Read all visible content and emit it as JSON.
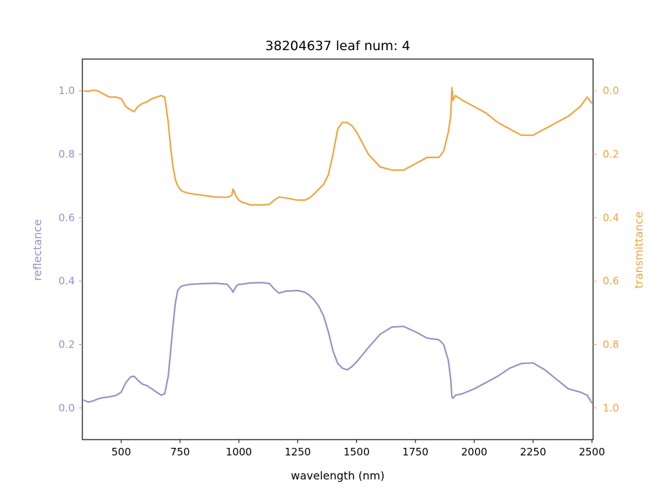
{
  "chart_data": {
    "type": "line",
    "title": "38204637 leaf num: 4",
    "xlabel": "wavelength (nm)",
    "ylabel_left": "reflectance",
    "ylabel_right": "transmittance",
    "xlim": [
      335,
      2505
    ],
    "ylim_left": [
      -0.1,
      1.1
    ],
    "ylim_right": [
      1.1,
      -0.1
    ],
    "right_axis_inverted": true,
    "grid": false,
    "legend": "none",
    "colors": {
      "reflectance": "#9591c6",
      "transmittance": "#f0a43c"
    },
    "x_ticks": [
      "500",
      "750",
      "1000",
      "1250",
      "1500",
      "1750",
      "2000",
      "2250",
      "2500"
    ],
    "x_tick_values": [
      500,
      750,
      1000,
      1250,
      1500,
      1750,
      2000,
      2250,
      2500
    ],
    "y_left_ticks": [
      "0.0",
      "0.2",
      "0.4",
      "0.6",
      "0.8",
      "1.0"
    ],
    "y_left_tick_values": [
      0.0,
      0.2,
      0.4,
      0.6,
      0.8,
      1.0
    ],
    "y_right_ticks": [
      "0.0",
      "0.2",
      "0.4",
      "0.6",
      "0.8",
      "1.0"
    ],
    "y_right_tick_values": [
      0.0,
      0.2,
      0.4,
      0.6,
      0.8,
      1.0
    ],
    "series": [
      {
        "key": "reflectance",
        "axis": "left",
        "x": [
          340,
          360,
          380,
          400,
          420,
          450,
          480,
          500,
          520,
          540,
          555,
          570,
          590,
          610,
          630,
          650,
          670,
          685,
          700,
          710,
          720,
          730,
          740,
          750,
          760,
          780,
          800,
          850,
          900,
          950,
          970,
          975,
          990,
          1000,
          1010,
          1050,
          1100,
          1130,
          1150,
          1170,
          1200,
          1250,
          1280,
          1300,
          1320,
          1340,
          1360,
          1380,
          1400,
          1420,
          1440,
          1460,
          1480,
          1500,
          1550,
          1600,
          1650,
          1700,
          1750,
          1800,
          1850,
          1870,
          1890,
          1900,
          1905,
          1910,
          1920,
          1950,
          2000,
          2050,
          2100,
          2150,
          2200,
          2250,
          2300,
          2350,
          2400,
          2450,
          2480,
          2500
        ],
        "y": [
          0.025,
          0.018,
          0.022,
          0.028,
          0.032,
          0.035,
          0.04,
          0.05,
          0.08,
          0.098,
          0.1,
          0.088,
          0.075,
          0.07,
          0.06,
          0.05,
          0.04,
          0.045,
          0.1,
          0.18,
          0.26,
          0.33,
          0.37,
          0.38,
          0.385,
          0.388,
          0.39,
          0.392,
          0.393,
          0.39,
          0.372,
          0.365,
          0.385,
          0.39,
          0.39,
          0.394,
          0.395,
          0.392,
          0.375,
          0.362,
          0.368,
          0.37,
          0.365,
          0.355,
          0.34,
          0.32,
          0.29,
          0.24,
          0.18,
          0.14,
          0.125,
          0.12,
          0.13,
          0.145,
          0.19,
          0.232,
          0.255,
          0.257,
          0.24,
          0.22,
          0.215,
          0.2,
          0.15,
          0.09,
          0.035,
          0.03,
          0.04,
          0.045,
          0.06,
          0.08,
          0.1,
          0.125,
          0.14,
          0.142,
          0.12,
          0.09,
          0.06,
          0.05,
          0.04,
          0.015
        ]
      },
      {
        "key": "transmittance",
        "axis": "right",
        "x": [
          340,
          360,
          380,
          400,
          420,
          450,
          480,
          500,
          520,
          540,
          555,
          570,
          590,
          610,
          630,
          650,
          670,
          685,
          700,
          710,
          720,
          730,
          740,
          750,
          760,
          780,
          800,
          850,
          900,
          950,
          970,
          975,
          990,
          1000,
          1010,
          1050,
          1100,
          1130,
          1150,
          1170,
          1200,
          1250,
          1280,
          1300,
          1320,
          1340,
          1360,
          1380,
          1400,
          1420,
          1440,
          1460,
          1480,
          1500,
          1550,
          1600,
          1650,
          1700,
          1750,
          1800,
          1850,
          1870,
          1890,
          1900,
          1905,
          1910,
          1920,
          1950,
          2000,
          2050,
          2100,
          2150,
          2200,
          2250,
          2300,
          2350,
          2400,
          2450,
          2480,
          2500
        ],
        "y": [
          0.0,
          0.002,
          -0.002,
          0.0,
          0.008,
          0.02,
          0.02,
          0.025,
          0.05,
          0.06,
          0.066,
          0.05,
          0.04,
          0.035,
          0.025,
          0.02,
          0.015,
          0.02,
          0.1,
          0.18,
          0.24,
          0.28,
          0.3,
          0.31,
          0.317,
          0.322,
          0.325,
          0.33,
          0.335,
          0.336,
          0.33,
          0.31,
          0.335,
          0.345,
          0.35,
          0.36,
          0.36,
          0.358,
          0.345,
          0.335,
          0.338,
          0.345,
          0.345,
          0.338,
          0.325,
          0.31,
          0.295,
          0.265,
          0.2,
          0.12,
          0.1,
          0.1,
          0.11,
          0.13,
          0.2,
          0.24,
          0.25,
          0.25,
          0.23,
          0.21,
          0.21,
          0.19,
          0.13,
          0.08,
          -0.01,
          0.03,
          0.015,
          0.03,
          0.05,
          0.07,
          0.1,
          0.12,
          0.14,
          0.14,
          0.12,
          0.1,
          0.08,
          0.05,
          0.02,
          0.04
        ]
      }
    ]
  }
}
